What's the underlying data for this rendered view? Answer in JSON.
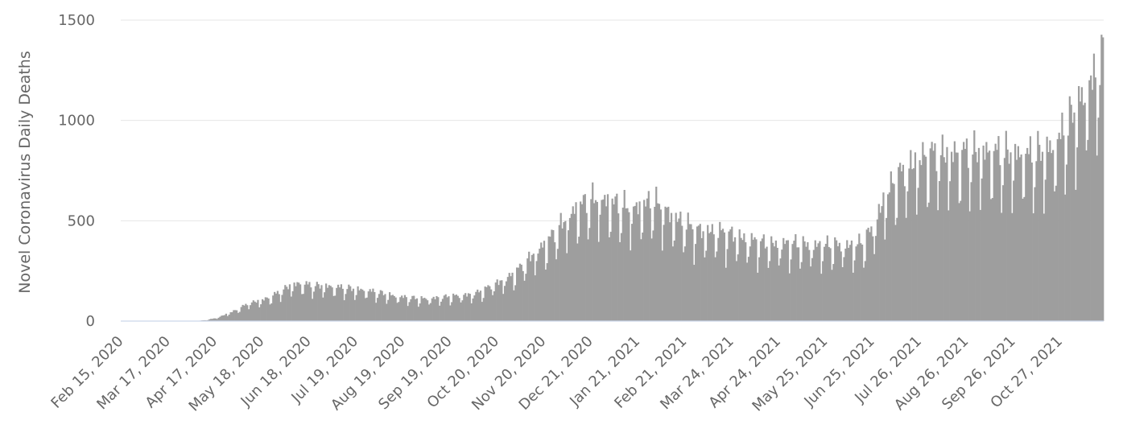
{
  "chart_data": {
    "type": "bar",
    "ylabel": "Novel Coronavirus Daily Deaths",
    "xlabel": "",
    "title": "",
    "ylim": [
      0,
      1500
    ],
    "y_ticks": [
      0,
      500,
      1000,
      1500
    ],
    "grid": true,
    "legend": "none",
    "x_tick_labels": [
      "Feb 15, 2020",
      "Mar 17, 2020",
      "Apr 17, 2020",
      "May 18, 2020",
      "Jun 18, 2020",
      "Jul 19, 2020",
      "Aug 19, 2020",
      "Sep 19, 2020",
      "Oct 20, 2020",
      "Nov 20, 2020",
      "Dec 21, 2020",
      "Jan 21, 2021",
      "Feb 21, 2021",
      "Mar 24, 2021",
      "Apr 24, 2021",
      "May 25, 2021",
      "Jun 25, 2021",
      "Jul 26, 2021",
      "Aug 26, 2021",
      "Sep 26, 2021",
      "Oct 27, 2021"
    ],
    "x_range": [
      "Feb 15, 2020",
      "Nov 24, 2021"
    ],
    "series_color": "#9e9e9e",
    "series": [
      {
        "weekly_avg_dates": [
          "Feb 15, 2020",
          "Feb 22, 2020",
          "Feb 29, 2020",
          "Mar 7, 2020",
          "Mar 14, 2020",
          "Mar 21, 2020",
          "Mar 28, 2020",
          "Apr 4, 2020",
          "Apr 11, 2020",
          "Apr 18, 2020",
          "Apr 25, 2020",
          "May 2, 2020",
          "May 9, 2020",
          "May 16, 2020",
          "May 23, 2020",
          "May 30, 2020",
          "Jun 6, 2020",
          "Jun 13, 2020",
          "Jun 20, 2020",
          "Jun 27, 2020",
          "Jul 4, 2020",
          "Jul 11, 2020",
          "Jul 18, 2020",
          "Jul 25, 2020",
          "Aug 1, 2020",
          "Aug 8, 2020",
          "Aug 15, 2020",
          "Aug 22, 2020",
          "Aug 29, 2020",
          "Sep 5, 2020",
          "Sep 12, 2020",
          "Sep 19, 2020",
          "Sep 26, 2020",
          "Oct 3, 2020",
          "Oct 10, 2020",
          "Oct 17, 2020",
          "Oct 24, 2020",
          "Oct 31, 2020",
          "Nov 7, 2020",
          "Nov 14, 2020",
          "Nov 21, 2020",
          "Nov 28, 2020",
          "Dec 5, 2020",
          "Dec 12, 2020",
          "Dec 19, 2020",
          "Dec 26, 2020",
          "Jan 2, 2021",
          "Jan 9, 2021",
          "Jan 16, 2021",
          "Jan 23, 2021",
          "Jan 30, 2021",
          "Feb 6, 2021",
          "Feb 13, 2021",
          "Feb 20, 2021",
          "Feb 27, 2021",
          "Mar 6, 2021",
          "Mar 13, 2021",
          "Mar 20, 2021",
          "Mar 27, 2021",
          "Apr 3, 2021",
          "Apr 10, 2021",
          "Apr 17, 2021",
          "Apr 24, 2021",
          "May 1, 2021",
          "May 8, 2021",
          "May 15, 2021",
          "May 22, 2021",
          "May 29, 2021",
          "Jun 5, 2021",
          "Jun 12, 2021",
          "Jun 19, 2021",
          "Jun 26, 2021",
          "Jul 3, 2021",
          "Jul 10, 2021",
          "Jul 17, 2021",
          "Jul 24, 2021",
          "Jul 31, 2021",
          "Aug 7, 2021",
          "Aug 14, 2021",
          "Aug 21, 2021",
          "Aug 28, 2021",
          "Sep 4, 2021",
          "Sep 11, 2021",
          "Sep 18, 2021",
          "Sep 25, 2021",
          "Oct 2, 2021",
          "Oct 9, 2021",
          "Oct 16, 2021",
          "Oct 23, 2021",
          "Oct 30, 2021",
          "Nov 6, 2021",
          "Nov 13, 2021",
          "Nov 20, 2021",
          "Nov 24, 2021"
        ],
        "weekly_avg_values": [
          0,
          0,
          0,
          0,
          0,
          0,
          0,
          0,
          5,
          15,
          35,
          55,
          85,
          95,
          110,
          140,
          170,
          175,
          165,
          165,
          160,
          155,
          150,
          145,
          135,
          125,
          115,
          110,
          105,
          105,
          110,
          115,
          120,
          125,
          140,
          170,
          190,
          220,
          270,
          320,
          360,
          420,
          480,
          530,
          560,
          570,
          560,
          540,
          520,
          540,
          560,
          530,
          490,
          460,
          430,
          420,
          420,
          410,
          400,
          380,
          370,
          360,
          360,
          360,
          360,
          355,
          350,
          355,
          355,
          350,
          370,
          450,
          580,
          660,
          710,
          750,
          770,
          780,
          780,
          780,
          785,
          790,
          790,
          780,
          780,
          780,
          775,
          790,
          820,
          900,
          980,
          1080,
          1160,
          1230
        ]
      }
    ]
  }
}
